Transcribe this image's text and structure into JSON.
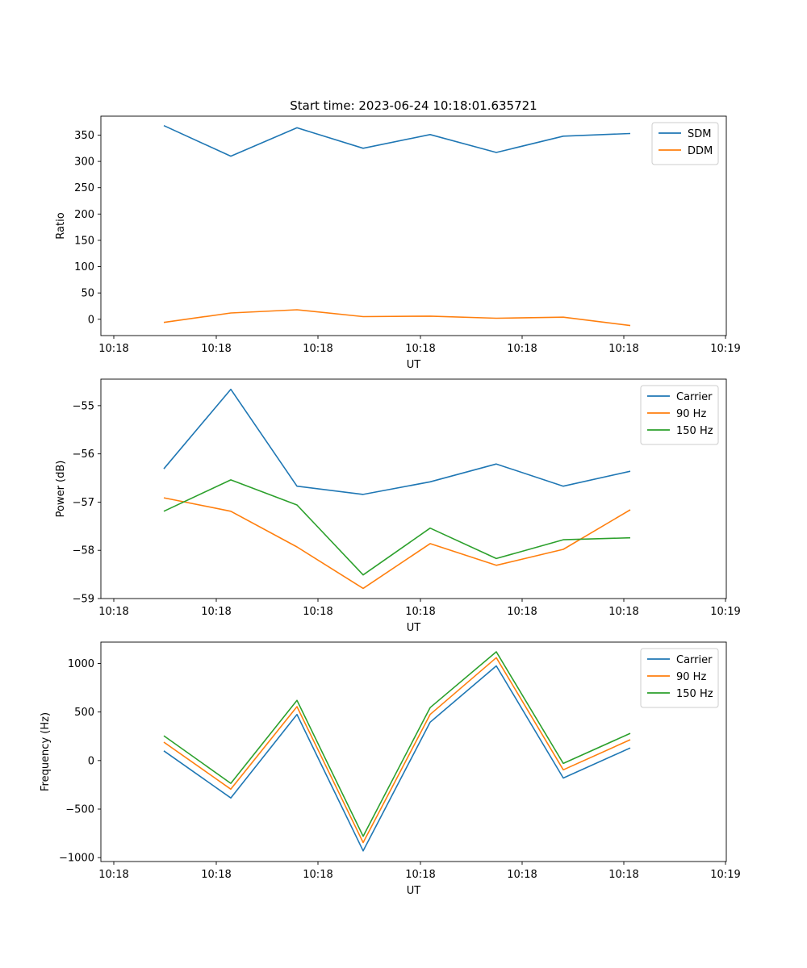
{
  "figure": {
    "title": "Start time: 2023-06-24 10:18:01.635721"
  },
  "chart_data": [
    {
      "type": "line",
      "title": "Start time: 2023-06-24 10:18:01.635721",
      "xlabel": "UT",
      "ylabel": "Ratio",
      "x_tick_labels": [
        "10:18",
        "10:18",
        "10:18",
        "10:18",
        "10:18",
        "10:18",
        "10:19"
      ],
      "y_ticks": [
        0,
        50,
        100,
        150,
        200,
        250,
        300,
        350
      ],
      "ylim": [
        -31,
        386
      ],
      "legend_position": "upper right",
      "grid": false,
      "series": [
        {
          "name": "SDM",
          "color": "#1f77b4",
          "values": [
            368,
            310,
            364,
            325,
            351,
            317,
            348,
            353
          ]
        },
        {
          "name": "DDM",
          "color": "#ff7f0e",
          "values": [
            -6,
            12,
            18,
            5,
            6,
            2,
            4,
            -12
          ]
        }
      ]
    },
    {
      "type": "line",
      "title": "",
      "xlabel": "UT",
      "ylabel": "Power (dB)",
      "x_tick_labels": [
        "10:18",
        "10:18",
        "10:18",
        "10:18",
        "10:18",
        "10:18",
        "10:19"
      ],
      "y_ticks": [
        -59,
        -58,
        -57,
        -56,
        -55
      ],
      "ylim": [
        -59.0,
        -54.45
      ],
      "legend_position": "upper right",
      "grid": false,
      "series": [
        {
          "name": "Carrier",
          "color": "#1f77b4",
          "values": [
            -56.31,
            -54.66,
            -56.67,
            -56.84,
            -56.58,
            -56.21,
            -56.67,
            -56.36
          ]
        },
        {
          "name": "90 Hz",
          "color": "#ff7f0e",
          "values": [
            -56.91,
            -57.19,
            -57.93,
            -58.79,
            -57.86,
            -58.31,
            -57.98,
            -57.16
          ]
        },
        {
          "name": "150 Hz",
          "color": "#2ca02c",
          "values": [
            -57.19,
            -56.54,
            -57.06,
            -58.51,
            -57.54,
            -58.17,
            -57.78,
            -57.74
          ]
        }
      ]
    },
    {
      "type": "line",
      "title": "",
      "xlabel": "UT",
      "ylabel": "Frequency (Hz)",
      "x_tick_labels": [
        "10:18",
        "10:18",
        "10:18",
        "10:18",
        "10:18",
        "10:18",
        "10:19"
      ],
      "y_ticks": [
        -1000,
        -500,
        0,
        500,
        1000
      ],
      "ylim": [
        -1040,
        1220
      ],
      "legend_position": "upper right",
      "grid": false,
      "series": [
        {
          "name": "Carrier",
          "color": "#1f77b4",
          "values": [
            100,
            -385,
            475,
            -930,
            395,
            975,
            -180,
            130
          ]
        },
        {
          "name": "90 Hz",
          "color": "#ff7f0e",
          "values": [
            190,
            -295,
            555,
            -845,
            475,
            1060,
            -95,
            215
          ]
        },
        {
          "name": "150 Hz",
          "color": "#2ca02c",
          "values": [
            255,
            -235,
            620,
            -780,
            545,
            1120,
            -30,
            280
          ]
        }
      ]
    }
  ]
}
